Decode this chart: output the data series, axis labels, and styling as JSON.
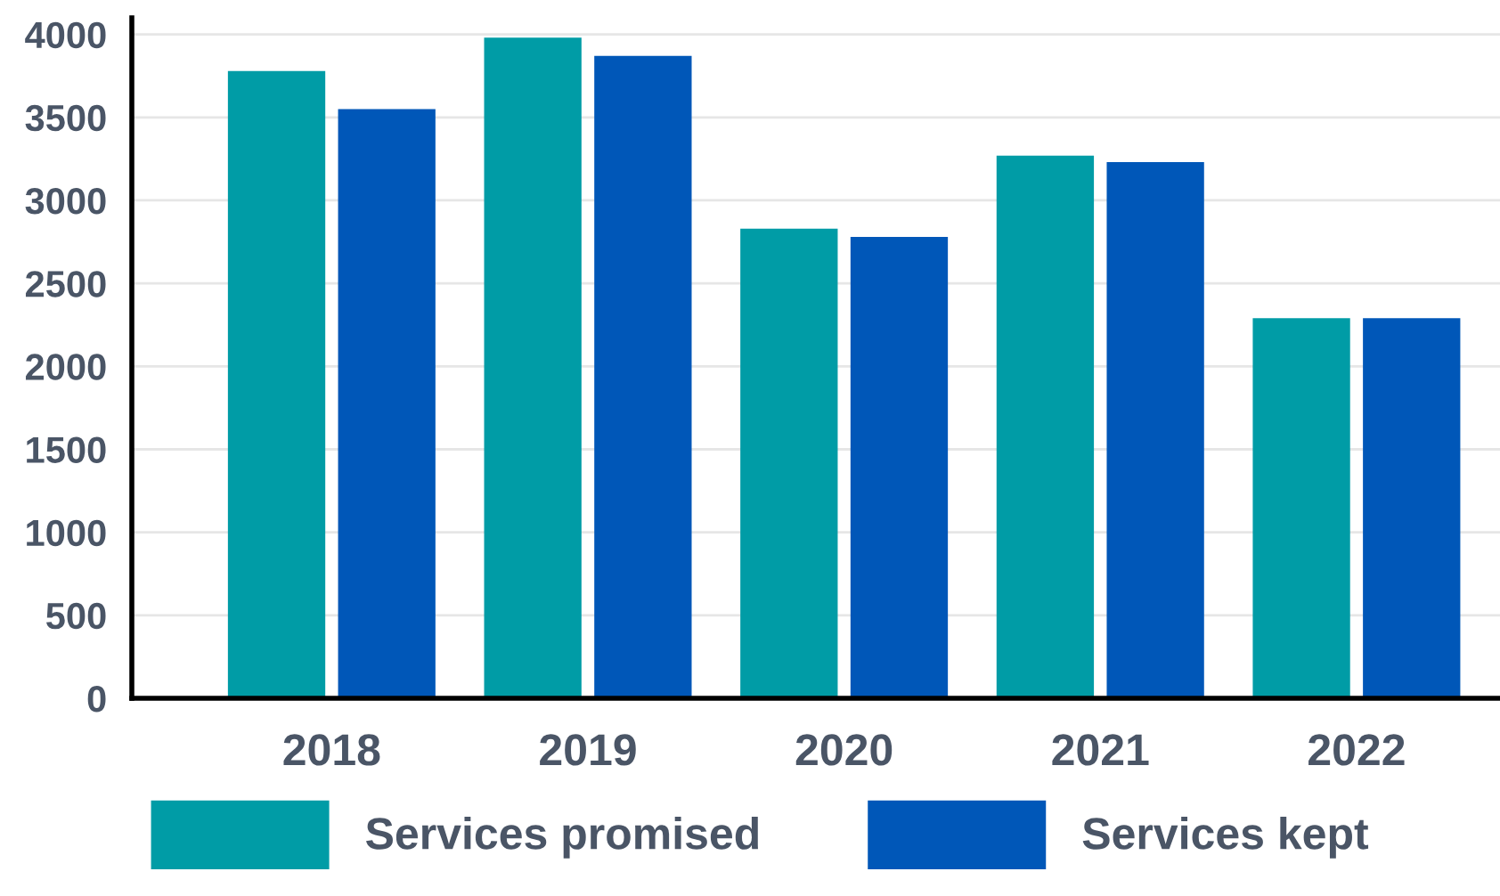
{
  "chart_data": {
    "type": "bar",
    "categories": [
      "2018",
      "2019",
      "2020",
      "2021",
      "2022"
    ],
    "series": [
      {
        "name": "Services promised",
        "color": "#009ca6",
        "values": [
          3780,
          3980,
          2830,
          3270,
          2290
        ]
      },
      {
        "name": "Services kept",
        "color": "#0057b8",
        "values": [
          3550,
          3870,
          2780,
          3230,
          2290
        ]
      }
    ],
    "ylim": [
      0,
      4100
    ],
    "yticks": [
      0,
      500,
      1000,
      1500,
      2000,
      2500,
      3000,
      3500,
      4000
    ],
    "grid": "y",
    "legend": "bottom"
  }
}
